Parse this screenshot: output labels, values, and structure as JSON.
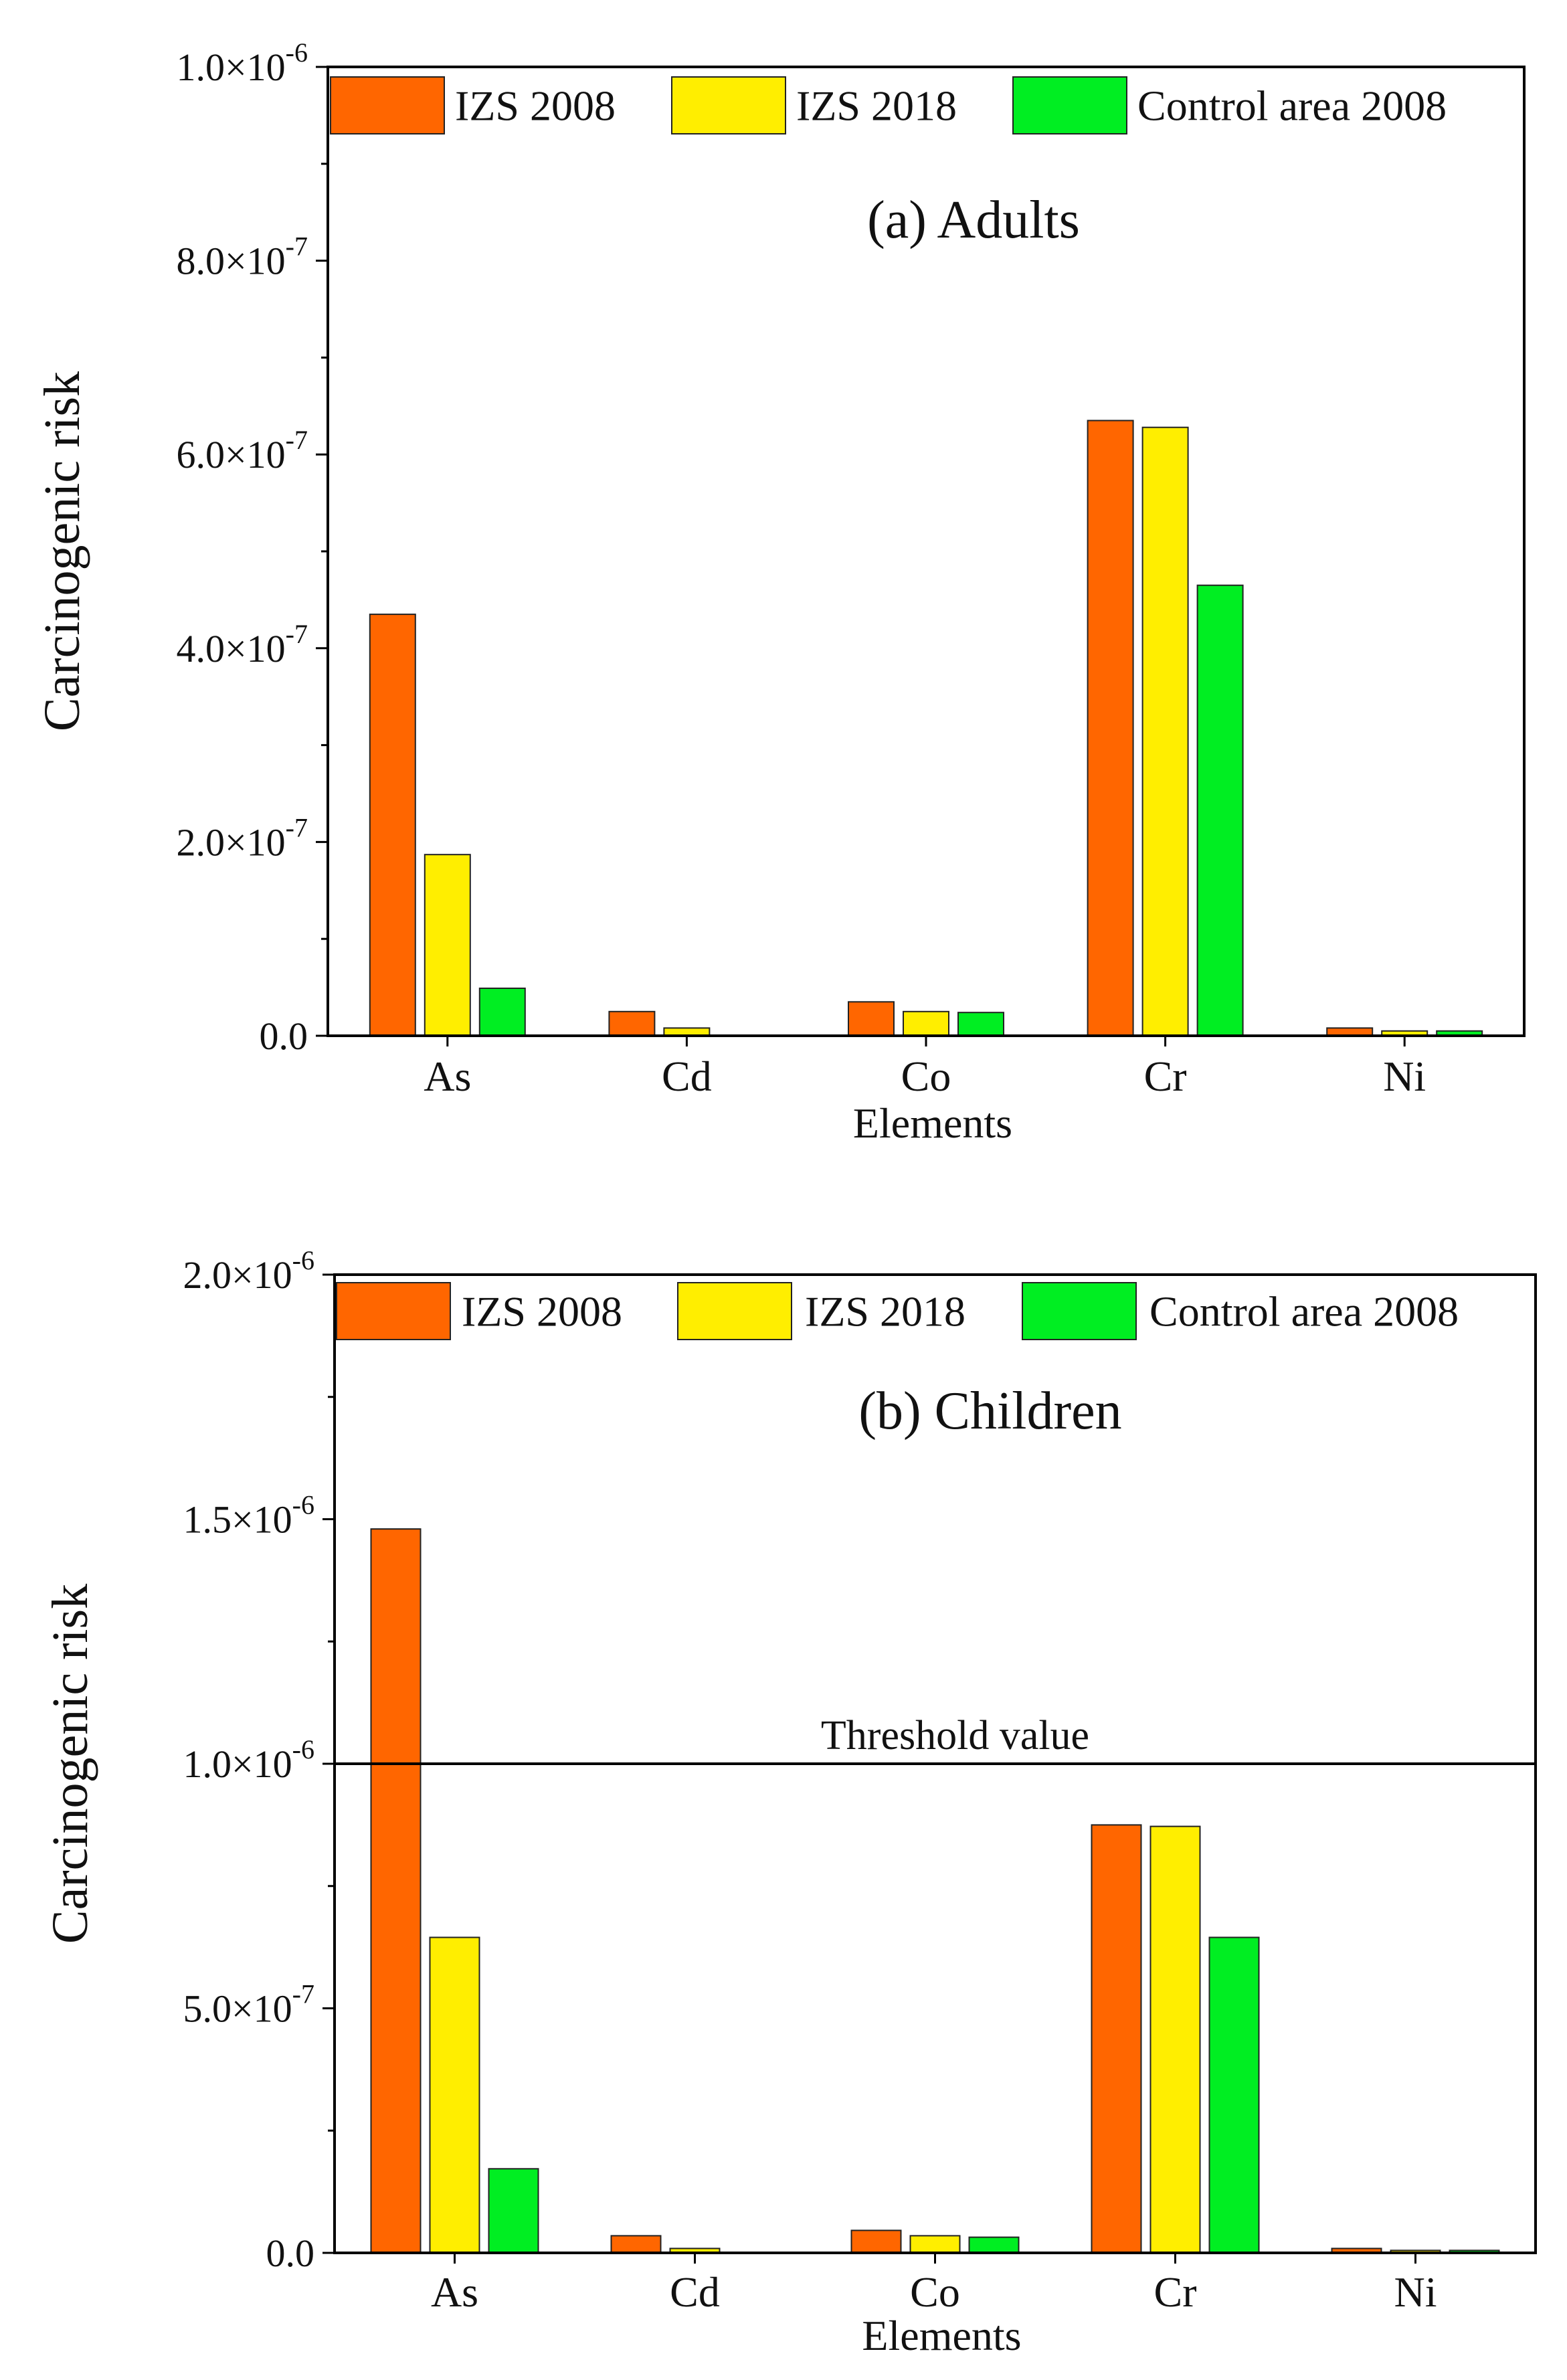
{
  "chart_data": [
    {
      "type": "bar",
      "title": "(a) Adults",
      "xlabel": "Elements",
      "ylabel": "Carcinogenic risk",
      "categories": [
        "As",
        "Cd",
        "Co",
        "Cr",
        "Ni"
      ],
      "series": [
        {
          "name": "IZS 2008",
          "color": "#ff6600",
          "values": [
            4.35e-07,
            2.5e-08,
            3.5e-08,
            6.35e-07,
            8e-09
          ]
        },
        {
          "name": "IZS 2018",
          "color": "#ffee00",
          "values": [
            1.87e-07,
            8e-09,
            2.5e-08,
            6.28e-07,
            5e-09
          ]
        },
        {
          "name": "Control area 2008",
          "color": "#00ee22",
          "values": [
            4.9e-08,
            0,
            2.4e-08,
            4.65e-07,
            5e-09
          ]
        }
      ],
      "ylim": [
        0,
        1e-06
      ],
      "yticks": [
        {
          "value": 0,
          "mant": "0.0",
          "exp": ""
        },
        {
          "value": 2e-07,
          "mant": "2.0×10",
          "exp": "-7"
        },
        {
          "value": 4e-07,
          "mant": "4.0×10",
          "exp": "-7"
        },
        {
          "value": 6e-07,
          "mant": "6.0×10",
          "exp": "-7"
        },
        {
          "value": 8e-07,
          "mant": "8.0×10",
          "exp": "-7"
        },
        {
          "value": 1e-06,
          "mant": "1.0×10",
          "exp": "-6"
        }
      ],
      "yminor": [
        1e-07,
        3e-07,
        5e-07,
        7e-07,
        9e-07
      ],
      "legend": "top"
    },
    {
      "type": "bar",
      "title": "(b) Children",
      "xlabel": "Elements",
      "ylabel": "Carcinogenic risk",
      "categories": [
        "As",
        "Cd",
        "Co",
        "Cr",
        "Ni"
      ],
      "series": [
        {
          "name": "IZS 2008",
          "color": "#ff6600",
          "values": [
            1.48e-06,
            3.5e-08,
            4.6e-08,
            8.75e-07,
            9e-09
          ]
        },
        {
          "name": "IZS 2018",
          "color": "#ffee00",
          "values": [
            6.45e-07,
            9e-09,
            3.5e-08,
            8.72e-07,
            5e-09
          ]
        },
        {
          "name": "Control area 2008",
          "color": "#00ee22",
          "values": [
            1.72e-07,
            0,
            3.2e-08,
            6.45e-07,
            5e-09
          ]
        }
      ],
      "ylim": [
        0,
        2e-06
      ],
      "yticks": [
        {
          "value": 0,
          "mant": "0.0",
          "exp": ""
        },
        {
          "value": 5e-07,
          "mant": "5.0×10",
          "exp": "-7"
        },
        {
          "value": 1e-06,
          "mant": "1.0×10",
          "exp": "-6"
        },
        {
          "value": 1.5e-06,
          "mant": "1.5×10",
          "exp": "-6"
        },
        {
          "value": 2e-06,
          "mant": "2.0×10",
          "exp": "-6"
        }
      ],
      "yminor": [
        2.5e-07,
        7.5e-07,
        1.25e-06,
        1.75e-06
      ],
      "threshold": {
        "value": 1e-06,
        "label": "Threshold value"
      },
      "legend": "top"
    }
  ]
}
